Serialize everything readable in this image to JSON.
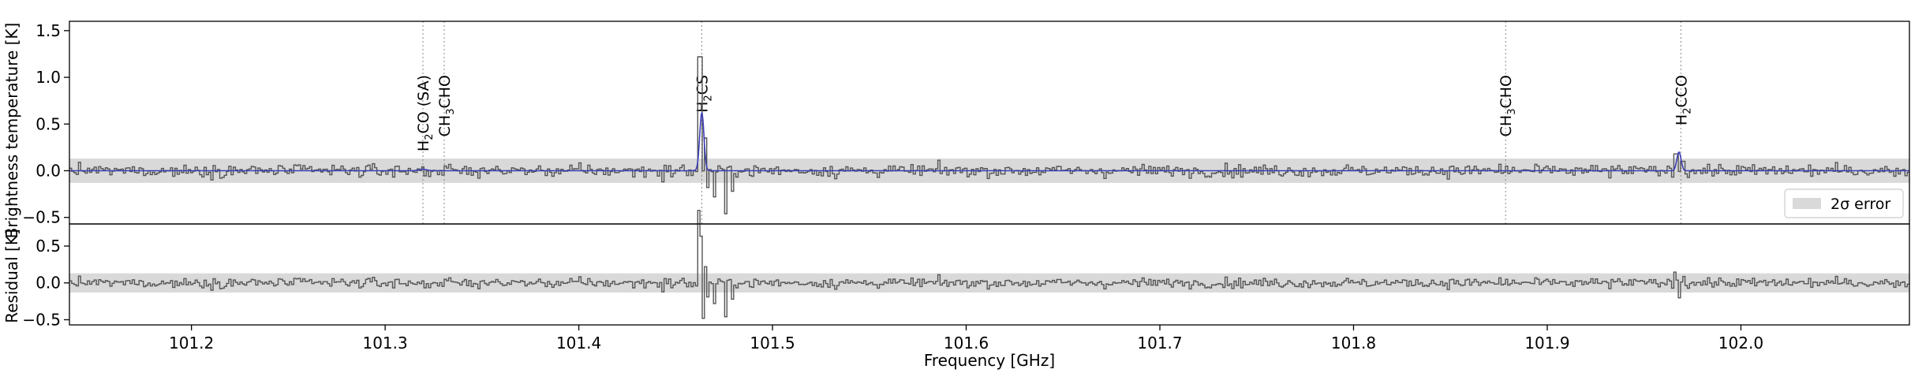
{
  "chart_data": [
    {
      "type": "line",
      "panel": "spectrum",
      "ylabel": "Brightness temperature [K]",
      "xlim": [
        101.137,
        102.087
      ],
      "ylim": [
        -0.57,
        1.6
      ],
      "yticks": [
        "1.5",
        "1.0",
        "0.5",
        "0.0",
        "−0.5"
      ],
      "ytick_values": [
        1.5,
        1.0,
        0.5,
        0.0,
        -0.5
      ],
      "error_band": [
        -0.13,
        0.13
      ],
      "legend": {
        "label": "2σ error",
        "placement": "lower-right"
      },
      "series": [
        {
          "role": "observed",
          "style": "steps",
          "color": "#555555",
          "noise_sigma": 0.055,
          "features": [
            {
              "x": 101.4435,
              "y": -0.12
            },
            {
              "x": 101.4625,
              "y": 1.22
            },
            {
              "x": 101.465,
              "y": 0.35
            },
            {
              "x": 101.467,
              "y": -0.18
            },
            {
              "x": 101.47,
              "y": -0.28
            },
            {
              "x": 101.4755,
              "y": -0.46
            },
            {
              "x": 101.479,
              "y": -0.22
            },
            {
              "x": 101.9665,
              "y": 0.18
            },
            {
              "x": 101.97,
              "y": 0.1
            }
          ]
        },
        {
          "role": "model",
          "color": "#3d3db8",
          "peaks": [
            {
              "x": 101.4635,
              "amp": 0.62,
              "width": 0.0011
            },
            {
              "x": 101.968,
              "amp": 0.2,
              "width": 0.0011
            },
            {
              "x": 101.3195,
              "amp": 0.015,
              "width": 0.002
            }
          ]
        }
      ],
      "line_markers": [
        {
          "x": 101.3195,
          "label_main": "H",
          "label_sub": "2",
          "label_rest": "CO (SA)"
        },
        {
          "x": 101.3305,
          "label_main": "CH",
          "label_sub": "3",
          "label_rest": "CHO"
        },
        {
          "x": 101.4635,
          "label_main": "H",
          "label_sub": "2",
          "label_rest": "CS"
        },
        {
          "x": 101.8785,
          "label_main": "CH",
          "label_sub": "3",
          "label_rest": "CHO"
        },
        {
          "x": 101.969,
          "label_main": "H",
          "label_sub": "2",
          "label_rest": "CCO"
        }
      ]
    },
    {
      "type": "line",
      "panel": "residual",
      "ylabel": "Residual [K]",
      "xlabel": "Frequency [GHz]",
      "xlim": [
        101.137,
        102.087
      ],
      "ylim": [
        -0.57,
        0.8
      ],
      "yticks": [
        "0.5",
        "0.0",
        "−0.5"
      ],
      "ytick_values": [
        0.5,
        0.0,
        -0.5
      ],
      "xticks": [
        "101.2",
        "101.3",
        "101.4",
        "101.5",
        "101.6",
        "101.7",
        "101.8",
        "101.9",
        "102.0"
      ],
      "xtick_values": [
        101.2,
        101.3,
        101.4,
        101.5,
        101.6,
        101.7,
        101.8,
        101.9,
        102.0
      ],
      "error_band": [
        -0.13,
        0.13
      ],
      "series": [
        {
          "role": "residual",
          "style": "steps",
          "color": "#555555",
          "derived_from": "observed minus model"
        }
      ]
    }
  ]
}
